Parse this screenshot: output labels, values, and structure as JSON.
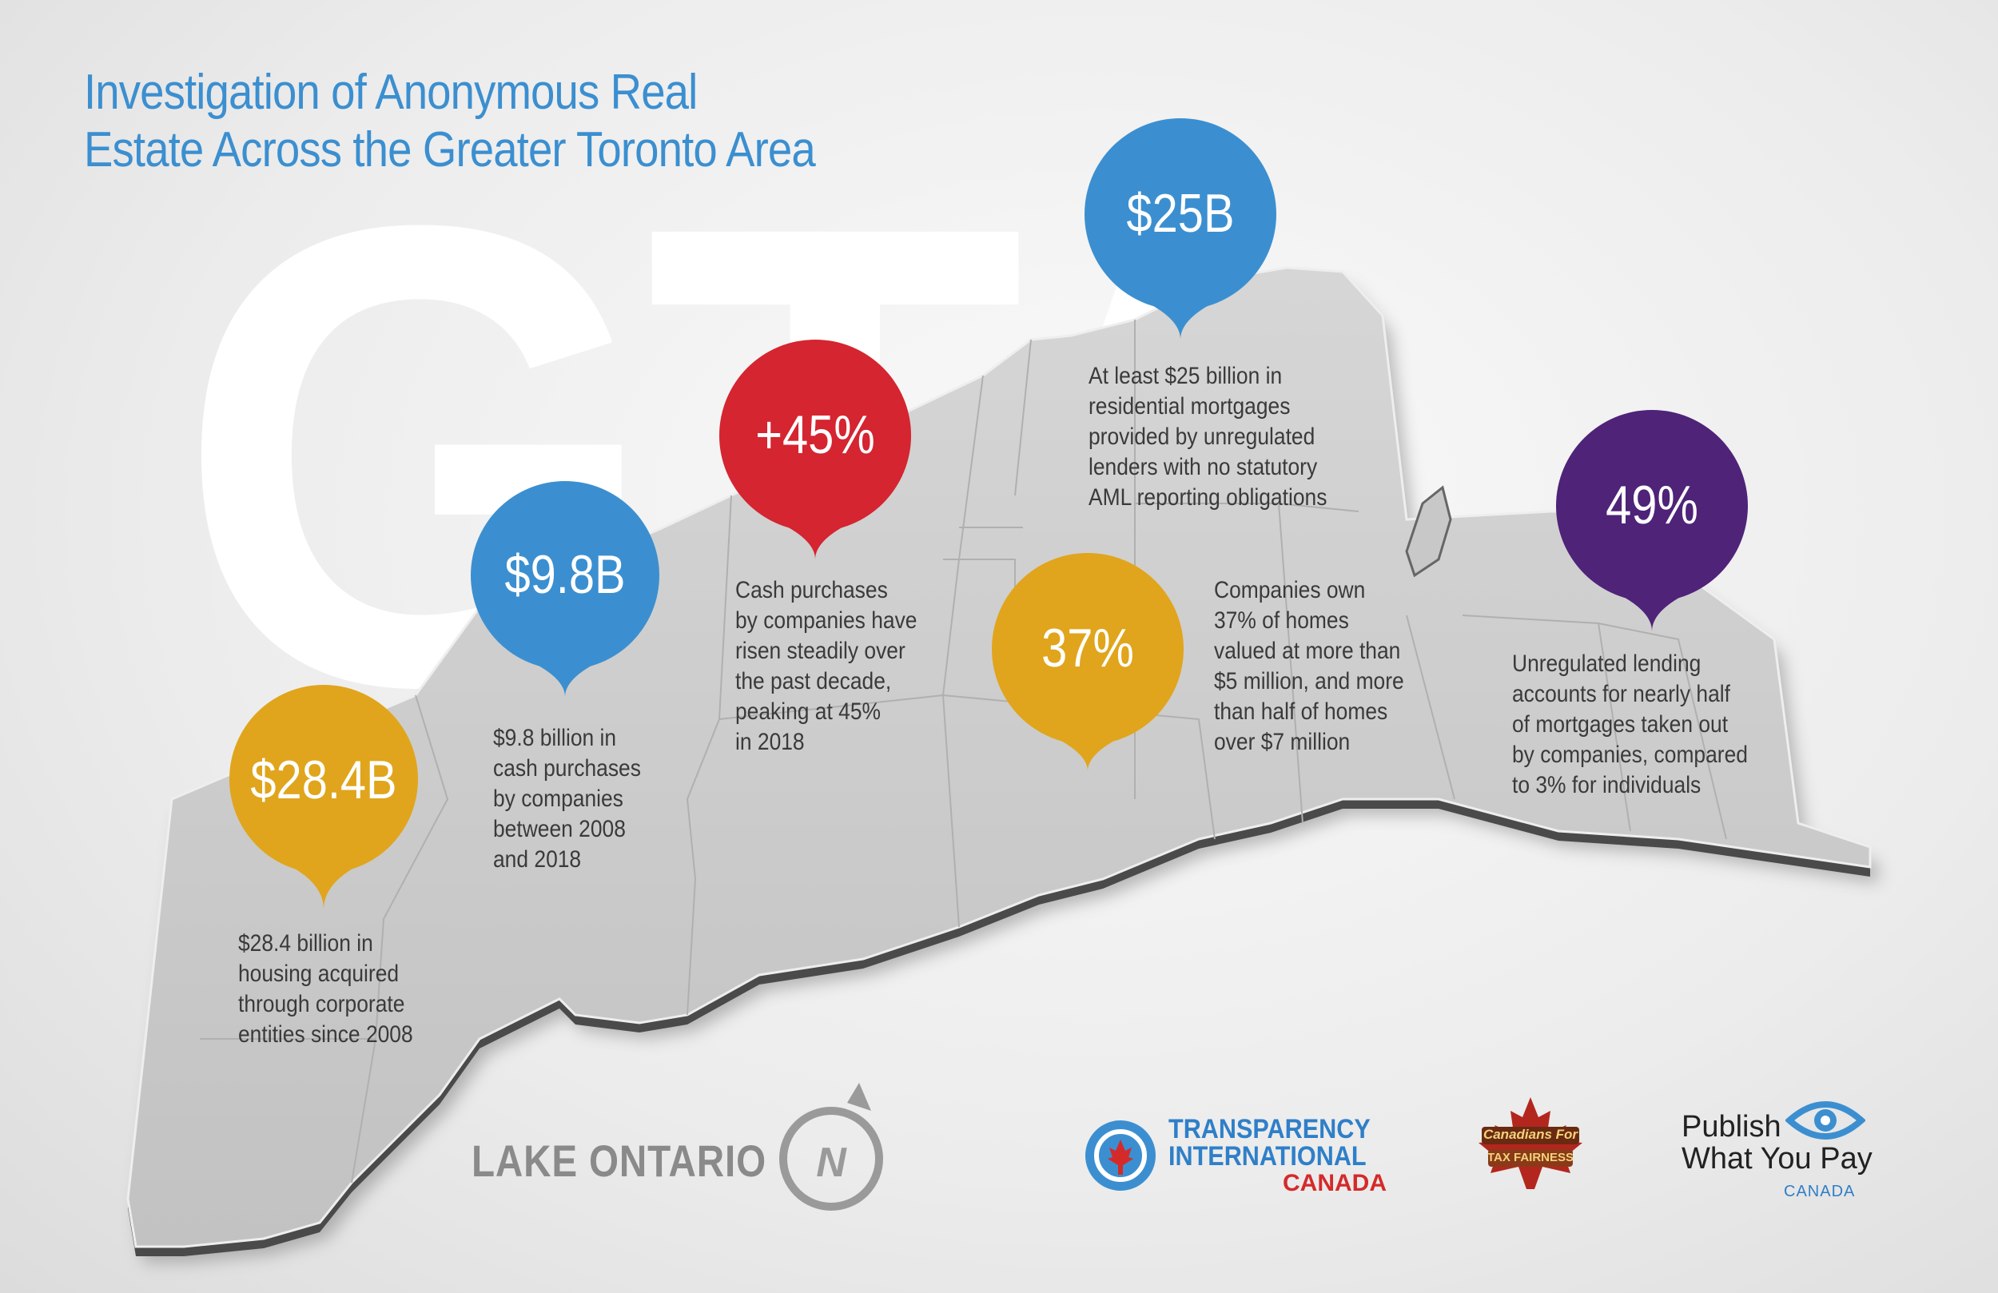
{
  "title_line1": "Investigation of Anonymous Real",
  "title_line2": "Estate Across the Greater Toronto Area",
  "background_text": "GTA",
  "lake_label": "LAKE ONTARIO",
  "compass_letter": "N",
  "colors": {
    "title_blue": "#3b8fd0",
    "pin_yellow": "#e0a51c",
    "pin_blue": "#3b8fd0",
    "pin_red": "#d42530",
    "pin_purple": "#4e2378",
    "map_gray": "#c8c8c8"
  },
  "stats": [
    {
      "value": "$28.4B",
      "color": "#e0a51c",
      "caption": [
        "$28.4 billion in",
        "housing acquired",
        "through corporate",
        "entities since 2008"
      ]
    },
    {
      "value": "$9.8B",
      "color": "#3b8fd0",
      "caption": [
        "$9.8 billion in",
        "cash purchases",
        "by companies",
        "between 2008",
        "and 2018"
      ]
    },
    {
      "value": "+45%",
      "color": "#d42530",
      "caption": [
        "Cash purchases",
        "by companies have",
        "risen steadily over",
        "the past decade,",
        "peaking at 45%",
        "in 2018"
      ]
    },
    {
      "value": "$25B",
      "color": "#3b8fd0",
      "caption": [
        "At least $25 billion in",
        "residential mortgages",
        "provided by unregulated",
        "lenders with no statutory",
        "AML reporting obligations"
      ]
    },
    {
      "value": "37%",
      "color": "#e0a51c",
      "caption": [
        "Companies own",
        "37% of homes",
        "valued at more than",
        "$5 million, and more",
        "than half of homes",
        "over $7 million"
      ]
    },
    {
      "value": "49%",
      "color": "#4e2378",
      "caption": [
        "Unregulated lending",
        "accounts for nearly half",
        "of mortgages taken out",
        "by companies, compared",
        "to 3% for individuals"
      ]
    }
  ],
  "logos": {
    "ti_line1": "TRANSPARENCY",
    "ti_line2": "INTERNATIONAL",
    "ti_line3": "CANADA",
    "cftf_line1": "Canadians For",
    "cftf_line2": "TAX FAIRNESS",
    "pwyp_line1": "Publish",
    "pwyp_line2": "What You Pay",
    "pwyp_line3": "CANADA"
  }
}
